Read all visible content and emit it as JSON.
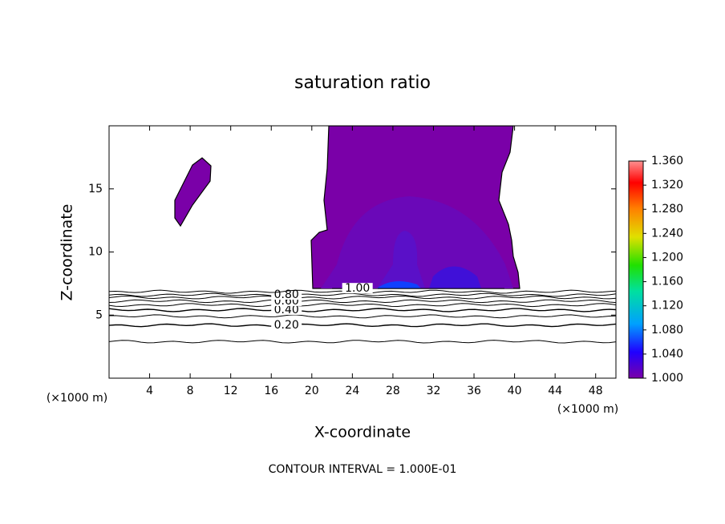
{
  "chart_data": {
    "type": "contour",
    "title": "saturation ratio",
    "xlabel": "X-coordinate",
    "ylabel": "Z-coordinate",
    "axis_unit_labels": [
      "(×1000 m)",
      "(×1000 m)"
    ],
    "footnote": "CONTOUR INTERVAL = 1.000E-01",
    "xlim": [
      0,
      50
    ],
    "xticks": [
      4,
      8,
      12,
      16,
      20,
      24,
      28,
      32,
      36,
      40,
      44,
      48
    ],
    "ylim": [
      0,
      20
    ],
    "yticks": [
      5,
      10,
      15
    ],
    "contours": [
      {
        "level": 0.1,
        "z": 2.9
      },
      {
        "level": 0.2,
        "z": 4.2,
        "label": "0.20"
      },
      {
        "level": 0.3,
        "z": 4.9
      },
      {
        "level": 0.4,
        "z": 5.4,
        "label": "0.40"
      },
      {
        "level": 0.5,
        "z": 5.8
      },
      {
        "level": 0.6,
        "z": 6.1,
        "label": "0.60"
      },
      {
        "level": 0.7,
        "z": 6.4
      },
      {
        "level": 0.8,
        "z": 6.6,
        "label": "0.80"
      },
      {
        "level": 0.9,
        "z": 6.85
      },
      {
        "level": 1.0,
        "z": 7.1,
        "label": "1.00"
      }
    ],
    "colorbar": {
      "lim": [
        1.0,
        1.36
      ],
      "ticks": [
        {
          "value": 1.0,
          "label": "1.000"
        },
        {
          "value": 1.04,
          "label": "1.040"
        },
        {
          "value": 1.08,
          "label": "1.080"
        },
        {
          "value": 1.12,
          "label": "1.120"
        },
        {
          "value": 1.16,
          "label": "1.160"
        },
        {
          "value": 1.2,
          "label": "1.200"
        },
        {
          "value": 1.24,
          "label": "1.240"
        },
        {
          "value": 1.28,
          "label": "1.280"
        },
        {
          "value": 1.32,
          "label": "1.320"
        },
        {
          "value": 1.36,
          "label": "1.360"
        }
      ]
    }
  }
}
